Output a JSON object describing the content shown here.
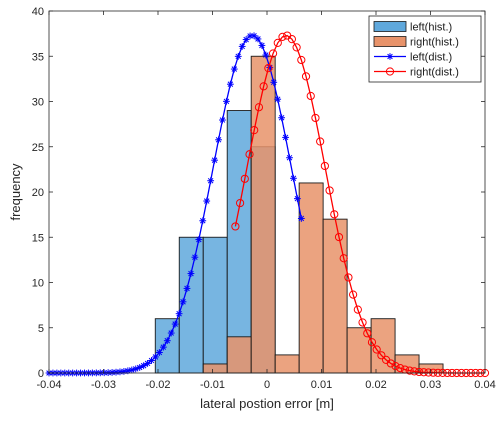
{
  "chart_data": {
    "type": "bar+line",
    "xlabel": "lateral postion error [m]",
    "ylabel": "frequency",
    "xlim": [
      -0.04,
      0.04
    ],
    "ylim": [
      0,
      40
    ],
    "x_ticks": [
      -0.04,
      -0.03,
      -0.02,
      -0.01,
      0,
      0.01,
      0.02,
      0.03,
      0.04
    ],
    "x_tick_labels": [
      "-0.04",
      "-0.03",
      "-0.02",
      "-0.01",
      "0",
      "0.01",
      "0.02",
      "0.03",
      "0.04"
    ],
    "y_ticks": [
      0,
      5,
      10,
      15,
      20,
      25,
      30,
      35,
      40
    ],
    "y_tick_labels": [
      "0",
      "5",
      "10",
      "15",
      "20",
      "25",
      "30",
      "35",
      "40"
    ],
    "grid": false,
    "legend_position": "top-right",
    "histograms": [
      {
        "name": "left(hist.)",
        "color": "#5fa8dc",
        "edges": [
          -0.0205,
          -0.0161,
          -0.0117,
          -0.0073,
          -0.0029,
          0.0015,
          0.0059
        ],
        "counts": [
          6,
          15,
          15,
          29,
          25,
          0
        ]
      },
      {
        "name": "right(hist.)",
        "color": "#e8936a",
        "edges": [
          -0.0117,
          -0.0073,
          -0.0029,
          0.0015,
          0.0059,
          0.0103,
          0.0147,
          0.0191,
          0.0235,
          0.0279,
          0.0323
        ],
        "counts": [
          1,
          4,
          35,
          2,
          21,
          17,
          5,
          6,
          2,
          1
        ]
      }
    ],
    "distributions": [
      {
        "name": "left(dist.)",
        "color": "#0000ff",
        "marker": "asterisk",
        "mean": -0.0027,
        "sd": 0.0072,
        "peak": 37.3,
        "x_start": -0.04,
        "x_end": 0.0063,
        "n_points": 65
      },
      {
        "name": "right(dist.)",
        "color": "#ff0000",
        "marker": "circle",
        "mean": 0.0035,
        "sd": 0.0072,
        "peak": 37.3,
        "x_start": -0.0058,
        "x_end": 0.04,
        "n_points": 54
      }
    ],
    "legend": [
      {
        "name": "left(hist.)",
        "kind": "patch",
        "color": "#5fa8dc"
      },
      {
        "name": "right(hist.)",
        "kind": "patch",
        "color": "#e8936a"
      },
      {
        "name": "left(dist.)",
        "kind": "line",
        "color": "#0000ff",
        "marker": "asterisk"
      },
      {
        "name": "right(dist.)",
        "kind": "line",
        "color": "#ff0000",
        "marker": "circle"
      }
    ]
  }
}
